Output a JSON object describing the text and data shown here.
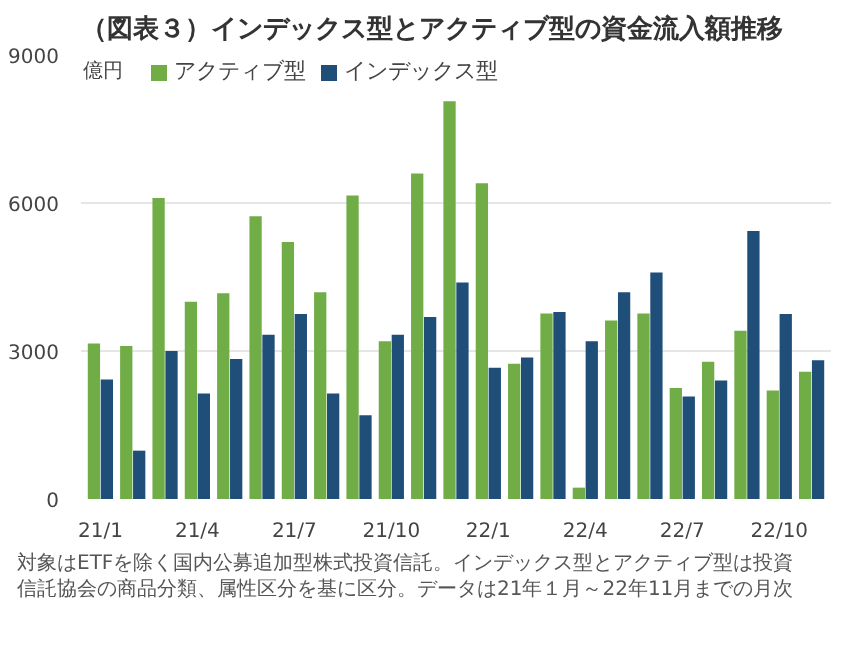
{
  "chart_data": {
    "type": "bar",
    "title": "（図表３）インデックス型とアクティブ型の資金流入額推移",
    "ylabel": "億円",
    "categories": [
      "21/1",
      null,
      null,
      "21/4",
      null,
      null,
      "21/7",
      null,
      null,
      "21/10",
      null,
      null,
      "22/1",
      null,
      null,
      "22/4",
      null,
      null,
      "22/7",
      null,
      null,
      "22/10",
      null
    ],
    "series": [
      {
        "name": "アクティブ型",
        "color": "#70ad47",
        "values": [
          3150,
          3100,
          6100,
          4000,
          4170,
          5730,
          5210,
          4190,
          6150,
          3200,
          6600,
          8060,
          6400,
          2740,
          3760,
          230,
          3620,
          3760,
          2250,
          2780,
          3410,
          2200,
          2580
        ]
      },
      {
        "name": "インデックス型",
        "color": "#1f4e79",
        "values": [
          2420,
          980,
          3000,
          2140,
          2840,
          3330,
          3750,
          2140,
          1700,
          3330,
          3690,
          4390,
          2660,
          2870,
          3790,
          3200,
          4190,
          4590,
          2080,
          2400,
          5430,
          3750,
          2810
        ]
      }
    ],
    "ylim": [
      0,
      9000
    ],
    "yticks": [
      0,
      3000,
      6000,
      9000
    ],
    "grid": "y",
    "legend": "top left",
    "annotations": [
      "対象はETFを除く国内公募追加型株式投資信託。インデックス型とアクティブ型は投資信託協会の商品分類、属性区分を基に区分。データは21年１月～22年11月までの月次"
    ]
  }
}
